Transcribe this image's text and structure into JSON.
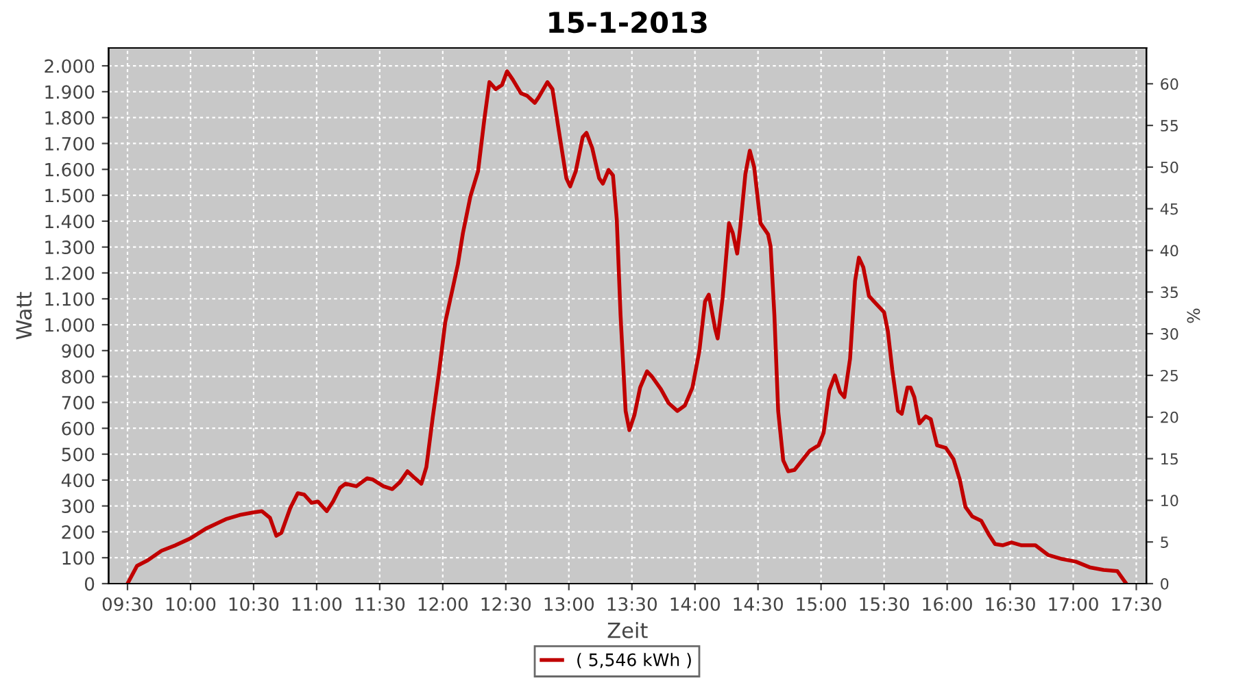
{
  "chart_data": {
    "type": "line",
    "title": "15-1-2013",
    "xlabel": "Zeit",
    "ylabel": "Watt",
    "y2label": "%",
    "x": [
      9.5,
      9.576,
      9.66,
      9.77,
      9.88,
      10.0,
      10.12,
      10.28,
      10.39,
      10.5,
      10.565,
      10.63,
      10.68,
      10.72,
      10.79,
      10.85,
      10.9,
      10.96,
      11.01,
      11.08,
      11.13,
      11.185,
      11.23,
      11.315,
      11.4,
      11.445,
      11.53,
      11.6,
      11.66,
      11.72,
      11.78,
      11.83,
      11.87,
      11.92,
      11.97,
      12.02,
      12.08,
      12.12,
      12.16,
      12.22,
      12.28,
      12.33,
      12.37,
      12.42,
      12.47,
      12.51,
      12.555,
      12.62,
      12.67,
      12.73,
      12.76,
      12.83,
      12.87,
      12.92,
      12.98,
      13.01,
      13.055,
      13.11,
      13.14,
      13.185,
      13.24,
      13.27,
      13.315,
      13.35,
      13.38,
      13.41,
      13.45,
      13.48,
      13.52,
      13.565,
      13.62,
      13.66,
      13.73,
      13.79,
      13.86,
      13.92,
      13.98,
      14.035,
      14.08,
      14.11,
      14.16,
      14.18,
      14.22,
      14.27,
      14.3,
      14.335,
      14.36,
      14.4,
      14.435,
      14.47,
      14.52,
      14.58,
      14.6,
      14.63,
      14.66,
      14.7,
      14.74,
      14.79,
      14.85,
      14.91,
      14.98,
      15.02,
      15.065,
      15.11,
      15.15,
      15.185,
      15.23,
      15.27,
      15.3,
      15.335,
      15.38,
      15.44,
      15.5,
      15.53,
      15.565,
      15.61,
      15.64,
      15.685,
      15.71,
      15.74,
      15.78,
      15.83,
      15.87,
      15.92,
      15.99,
      16.05,
      16.1,
      16.145,
      16.2,
      16.27,
      16.33,
      16.38,
      16.44,
      16.51,
      16.59,
      16.7,
      16.8,
      16.91,
      17.02,
      17.13,
      17.24,
      17.35,
      17.42
    ],
    "series": [
      {
        "name": "( 5,546 kWh )",
        "color": "#c00000",
        "values": [
          0,
          69,
          90,
          127,
          148,
          175,
          212,
          249,
          265,
          275,
          280,
          254,
          185,
          196,
          291,
          349,
          344,
          312,
          317,
          280,
          317,
          370,
          386,
          376,
          407,
          402,
          376,
          365,
          392,
          434,
          407,
          386,
          450,
          640,
          815,
          1010,
          1143,
          1233,
          1354,
          1497,
          1593,
          1794,
          1937,
          1910,
          1926,
          1979,
          1947,
          1894,
          1884,
          1857,
          1878,
          1937,
          1910,
          1751,
          1566,
          1534,
          1593,
          1725,
          1741,
          1683,
          1566,
          1545,
          1598,
          1577,
          1407,
          1037,
          667,
          593,
          651,
          757,
          820,
          799,
          751,
          698,
          667,
          688,
          757,
          899,
          1090,
          1116,
          984,
          947,
          1106,
          1392,
          1354,
          1275,
          1381,
          1582,
          1672,
          1608,
          1392,
          1349,
          1302,
          1037,
          667,
          476,
          434,
          439,
          476,
          513,
          534,
          582,
          746,
          804,
          741,
          720,
          868,
          1169,
          1259,
          1222,
          1111,
          1079,
          1048,
          974,
          825,
          667,
          656,
          757,
          757,
          720,
          619,
          646,
          635,
          534,
          524,
          481,
          402,
          296,
          259,
          243,
          190,
          153,
          148,
          159,
          148,
          148,
          111,
          95,
          85,
          63,
          53,
          48,
          0
        ]
      }
    ],
    "xlim": [
      9.35,
      17.58
    ],
    "xticks": [
      {
        "value": 9.5,
        "label": "09:30"
      },
      {
        "value": 10,
        "label": "10:00"
      },
      {
        "value": 10.5,
        "label": "10:30"
      },
      {
        "value": 11,
        "label": "11:00"
      },
      {
        "value": 11.5,
        "label": "11:30"
      },
      {
        "value": 12,
        "label": "12:00"
      },
      {
        "value": 12.5,
        "label": "12:30"
      },
      {
        "value": 13,
        "label": "13:00"
      },
      {
        "value": 13.5,
        "label": "13:30"
      },
      {
        "value": 14,
        "label": "14:00"
      },
      {
        "value": 14.5,
        "label": "14:30"
      },
      {
        "value": 15,
        "label": "15:00"
      },
      {
        "value": 15.5,
        "label": "15:30"
      },
      {
        "value": 16,
        "label": "16:00"
      },
      {
        "value": 16.5,
        "label": "16:30"
      },
      {
        "value": 17,
        "label": "17:00"
      },
      {
        "value": 17.5,
        "label": "17:30"
      }
    ],
    "ylim": [
      0,
      2069
    ],
    "yticks": [
      0,
      100,
      200,
      300,
      400,
      500,
      600,
      700,
      800,
      900,
      {
        "value": 1000,
        "label": "1.000"
      },
      {
        "value": 1100,
        "label": "1.100"
      },
      {
        "value": 1200,
        "label": "1.200"
      },
      {
        "value": 1300,
        "label": "1.300"
      },
      {
        "value": 1400,
        "label": "1.400"
      },
      {
        "value": 1500,
        "label": "1.500"
      },
      {
        "value": 1600,
        "label": "1.600"
      },
      {
        "value": 1700,
        "label": "1.700"
      },
      {
        "value": 1800,
        "label": "1.800"
      },
      {
        "value": 1900,
        "label": "1.900"
      },
      {
        "value": 2000,
        "label": "2.000"
      }
    ],
    "y2lim": [
      0,
      64.3
    ],
    "y2ticks": [
      0,
      5,
      10,
      15,
      20,
      25,
      30,
      35,
      40,
      45,
      50,
      55,
      60
    ],
    "grid": true,
    "legend": "bottom",
    "marker": "none",
    "line_style": "solid"
  }
}
